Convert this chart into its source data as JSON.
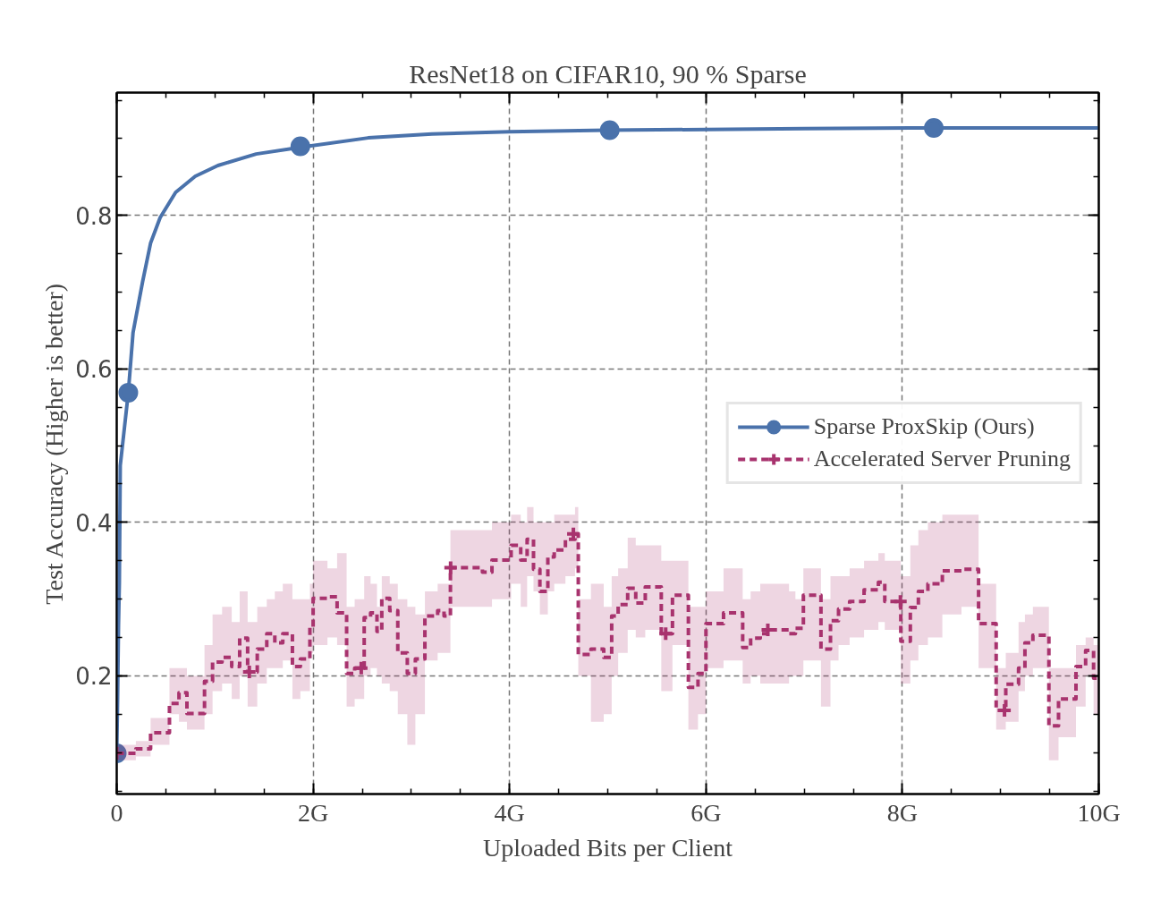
{
  "chart_data": {
    "type": "line",
    "title": "ResNet18 on CIFAR10, 90 % Sparse",
    "xlabel": "Uploaded Bits per Client",
    "ylabel": "Test Accuracy (Higher is better)",
    "xlim": [
      0,
      10
    ],
    "ylim": [
      0.046,
      0.96
    ],
    "xticks": [
      0,
      {
        "value": 2,
        "label": "2G"
      },
      {
        "value": 4,
        "label": "4G"
      },
      {
        "value": 6,
        "label": "6G"
      },
      {
        "value": 8,
        "label": "8G"
      },
      {
        "value": 10,
        "label": "10G"
      }
    ],
    "yticks": [
      0.2,
      0.4,
      0.6,
      0.8
    ],
    "grid": true,
    "legend": "right",
    "series": [
      {
        "name": "Sparse ProxSkip (Ours)",
        "color": "#4a72ab",
        "marker": "none",
        "line_style": "solid",
        "x": [
          0,
          0.009,
          0.018,
          0.027,
          0.036,
          0.118,
          0.166,
          0.264,
          0.345,
          0.442,
          0.6,
          0.8,
          1.03,
          1.42,
          1.88,
          2.56,
          3.21,
          4.0,
          4.99,
          6.0,
          7.0,
          8.3,
          9.0,
          10.0
        ],
        "values": [
          0.099,
          0.171,
          0.264,
          0.322,
          0.474,
          0.569,
          0.647,
          0.714,
          0.764,
          0.797,
          0.83,
          0.851,
          0.865,
          0.88,
          0.889,
          0.901,
          0.906,
          0.909,
          0.911,
          0.912,
          0.913,
          0.914,
          0.914,
          0.914
        ]
      },
      {
        "type": "scatter",
        "color": "#4a72ab",
        "marker": "circle",
        "x": [
          0,
          0.118,
          1.87,
          5.02,
          8.32
        ],
        "values": [
          0.099,
          0.569,
          0.89,
          0.911,
          0.914
        ]
      },
      {
        "name": "Accelerated Server Pruning",
        "type": "step",
        "color": "#a8336e",
        "marker": "none",
        "line_style": "dashed",
        "x": [
          0,
          0.195,
          0.345,
          0.537,
          0.634,
          0.715,
          0.894,
          0.976,
          1.073,
          1.171,
          1.252,
          1.333,
          1.431,
          1.528,
          1.61,
          1.691,
          1.789,
          1.87,
          1.967,
          2.0,
          2.146,
          2.244,
          2.341,
          2.423,
          2.52,
          2.585,
          2.65,
          2.699,
          2.78,
          2.862,
          2.959,
          3.041,
          3.138,
          3.268,
          3.333,
          3.398,
          3.724,
          3.821,
          4.016,
          4.114,
          4.179,
          4.244,
          4.309,
          4.39,
          4.455,
          4.569,
          4.667,
          4.7,
          4.829,
          4.959,
          5.04,
          5.106,
          5.203,
          5.285,
          5.382,
          5.545,
          5.659,
          5.821,
          5.919,
          6.0,
          6.179,
          6.374,
          6.455,
          6.553,
          6.65,
          6.846,
          6.911,
          6.992,
          7.171,
          7.268,
          7.35,
          7.463,
          7.61,
          7.756,
          7.821,
          7.984,
          8.081,
          8.163,
          8.26,
          8.407,
          8.602,
          8.776,
          8.955,
          9.053,
          9.183,
          9.248,
          9.329,
          9.492,
          9.59,
          9.768,
          9.866,
          9.947,
          10.0
        ],
        "values": [
          0.099,
          0.105,
          0.126,
          0.164,
          0.178,
          0.151,
          0.193,
          0.218,
          0.224,
          0.212,
          0.249,
          0.205,
          0.235,
          0.255,
          0.243,
          0.255,
          0.212,
          0.222,
          0.264,
          0.301,
          0.303,
          0.282,
          0.203,
          0.21,
          0.276,
          0.282,
          0.258,
          0.301,
          0.285,
          0.23,
          0.203,
          0.222,
          0.278,
          0.285,
          0.278,
          0.341,
          0.335,
          0.351,
          0.37,
          0.351,
          0.378,
          0.339,
          0.31,
          0.355,
          0.364,
          0.378,
          0.385,
          0.228,
          0.235,
          0.224,
          0.278,
          0.293,
          0.314,
          0.295,
          0.316,
          0.255,
          0.305,
          0.185,
          0.203,
          0.268,
          0.282,
          0.237,
          0.249,
          0.255,
          0.26,
          0.255,
          0.262,
          0.305,
          0.235,
          0.272,
          0.287,
          0.297,
          0.312,
          0.322,
          0.297,
          0.245,
          0.289,
          0.31,
          0.32,
          0.337,
          0.339,
          0.268,
          0.155,
          0.189,
          0.21,
          0.243,
          0.253,
          0.135,
          0.17,
          0.212,
          0.233,
          0.197,
          0.197
        ],
        "lower": [
          0.09,
          0.095,
          0.11,
          0.15,
          0.14,
          0.13,
          0.15,
          0.18,
          0.19,
          0.17,
          0.2,
          0.16,
          0.19,
          0.21,
          0.21,
          0.22,
          0.17,
          0.18,
          0.23,
          0.24,
          0.25,
          0.24,
          0.16,
          0.17,
          0.2,
          0.21,
          0.2,
          0.19,
          0.18,
          0.15,
          0.11,
          0.15,
          0.22,
          0.23,
          0.23,
          0.29,
          0.29,
          0.3,
          0.32,
          0.29,
          0.33,
          0.31,
          0.28,
          0.31,
          0.32,
          0.33,
          0.34,
          0.2,
          0.14,
          0.15,
          0.2,
          0.23,
          0.26,
          0.25,
          0.26,
          0.18,
          0.24,
          0.13,
          0.15,
          0.21,
          0.22,
          0.19,
          0.2,
          0.19,
          0.19,
          0.2,
          0.2,
          0.22,
          0.16,
          0.22,
          0.24,
          0.25,
          0.26,
          0.27,
          0.26,
          0.19,
          0.22,
          0.24,
          0.25,
          0.28,
          0.29,
          0.21,
          0.13,
          0.14,
          0.18,
          0.2,
          0.21,
          0.09,
          0.12,
          0.16,
          0.2,
          0.15,
          0.15
        ],
        "upper": [
          0.11,
          0.115,
          0.145,
          0.21,
          0.21,
          0.2,
          0.24,
          0.28,
          0.29,
          0.27,
          0.31,
          0.27,
          0.29,
          0.3,
          0.31,
          0.32,
          0.3,
          0.3,
          0.32,
          0.35,
          0.34,
          0.36,
          0.29,
          0.3,
          0.33,
          0.32,
          0.29,
          0.33,
          0.32,
          0.3,
          0.29,
          0.28,
          0.31,
          0.32,
          0.32,
          0.39,
          0.39,
          0.4,
          0.41,
          0.4,
          0.42,
          0.4,
          0.4,
          0.4,
          0.41,
          0.41,
          0.42,
          0.3,
          0.32,
          0.29,
          0.33,
          0.34,
          0.38,
          0.37,
          0.37,
          0.35,
          0.35,
          0.29,
          0.29,
          0.31,
          0.34,
          0.3,
          0.31,
          0.32,
          0.32,
          0.31,
          0.3,
          0.34,
          0.3,
          0.33,
          0.33,
          0.34,
          0.35,
          0.36,
          0.35,
          0.33,
          0.37,
          0.39,
          0.4,
          0.41,
          0.41,
          0.32,
          0.21,
          0.23,
          0.27,
          0.28,
          0.29,
          0.21,
          0.21,
          0.24,
          0.25,
          0.24,
          0.24
        ]
      },
      {
        "type": "scatter",
        "color": "#a8336e",
        "marker": "cross",
        "x": [
          0,
          1.35,
          2.49,
          3.4,
          4.65,
          5.59,
          6.63,
          7.98,
          9.04
        ],
        "values": [
          0.099,
          0.205,
          0.21,
          0.341,
          0.385,
          0.255,
          0.26,
          0.297,
          0.155
        ]
      }
    ]
  }
}
